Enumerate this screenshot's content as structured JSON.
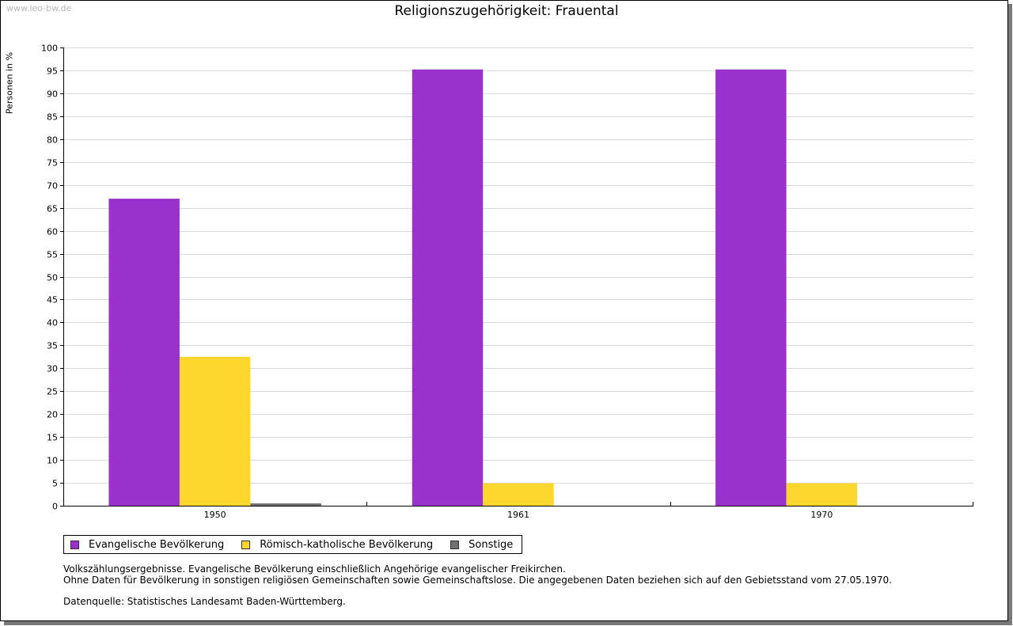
{
  "watermark": "www.leo-bw.de",
  "colors": {
    "series": [
      "#9932cc",
      "#fdd72d",
      "#707070"
    ]
  },
  "chart_data": {
    "type": "bar",
    "title": "Religionszugehörigkeit: Frauental",
    "xlabel": "",
    "ylabel": "Personen in %",
    "ylim": [
      0,
      100
    ],
    "ytick_step": 5,
    "yticks": [
      "0",
      "5",
      "10",
      "15",
      "20",
      "25",
      "30",
      "35",
      "40",
      "45",
      "50",
      "55",
      "60",
      "65",
      "70",
      "75",
      "80",
      "85",
      "90",
      "95",
      "100"
    ],
    "categories": [
      "1950",
      "1961",
      "1970"
    ],
    "series": [
      {
        "name": "Evangelische Bevölkerung",
        "values": [
          67.0,
          95.2,
          95.2
        ]
      },
      {
        "name": "Römisch-katholische Bevölkerung",
        "values": [
          32.5,
          4.9,
          4.9
        ]
      },
      {
        "name": "Sonstige",
        "values": [
          0.5,
          0.0,
          0.0
        ]
      }
    ],
    "grid": true,
    "legend": "bottom-left"
  },
  "notes": {
    "line1": "Volkszählungsergebnisse. Evangelische Bevölkerung einschließlich Angehörige evangelischer Freikirchen.",
    "line2": "Ohne Daten für Bevölkerung in sonstigen religiösen Gemeinschaften sowie Gemeinschaftslose. Die angegebenen Daten beziehen sich auf den Gebietsstand vom 27.05.1970.",
    "source": "Datenquelle: Statistisches Landesamt Baden-Württemberg."
  }
}
